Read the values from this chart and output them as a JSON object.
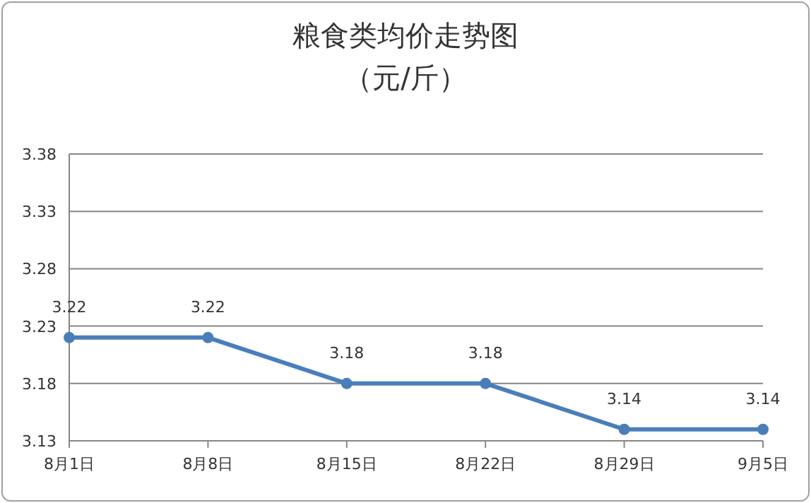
{
  "chart_data": {
    "type": "line",
    "title": "粮食类均价走势图",
    "subtitle": "（元/斤）",
    "categories": [
      "8月1日",
      "8月8日",
      "8月15日",
      "8月22日",
      "8月29日",
      "9月5日"
    ],
    "series": [
      {
        "color": "#4a7ebb",
        "values": [
          3.22,
          3.22,
          3.18,
          3.18,
          3.14,
          3.14
        ]
      }
    ],
    "ylim": [
      3.13,
      3.38
    ],
    "yticks": [
      3.13,
      3.18,
      3.23,
      3.28,
      3.33,
      3.38
    ],
    "grid": "y",
    "marker": "circle",
    "line_style": "solid",
    "data_labels": true
  }
}
